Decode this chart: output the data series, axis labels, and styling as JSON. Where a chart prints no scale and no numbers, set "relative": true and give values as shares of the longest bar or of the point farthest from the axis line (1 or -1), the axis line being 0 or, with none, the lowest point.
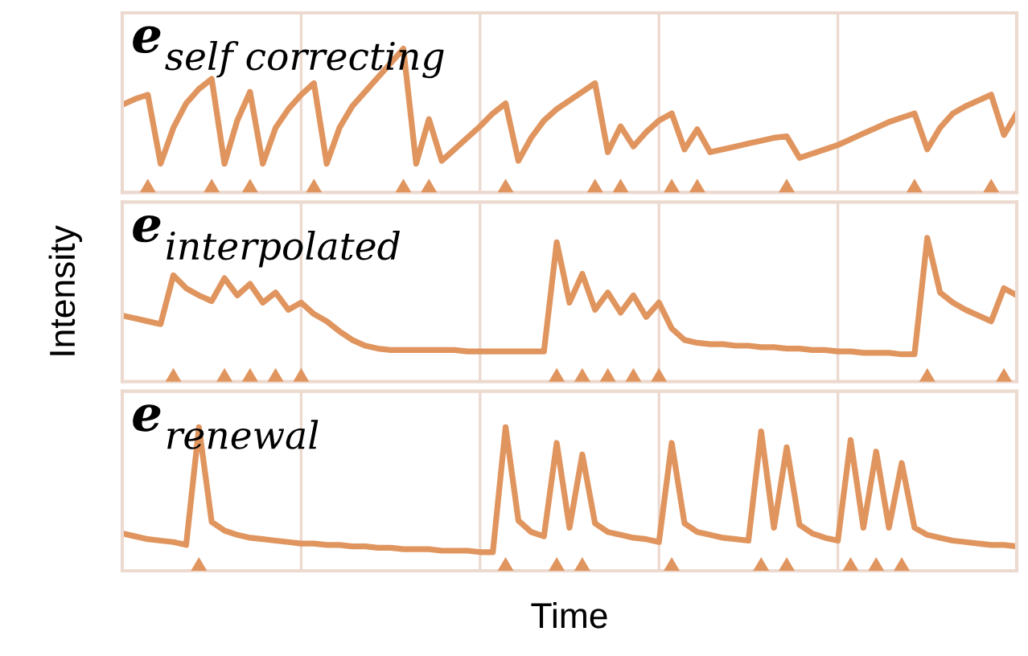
{
  "chart_data": [
    {
      "type": "line",
      "title": "e$_{self correcting}$",
      "relative": true,
      "grid": "x",
      "tick_labels": false,
      "categories": [
        null,
        null,
        null,
        null,
        null,
        null,
        null,
        null,
        null,
        null,
        null,
        null,
        null,
        null,
        null,
        null,
        null,
        null,
        null,
        null,
        null,
        null,
        null,
        null,
        null,
        null,
        null,
        null,
        null,
        null,
        null,
        null,
        null,
        null,
        null,
        null,
        null,
        null,
        null,
        null,
        null,
        null,
        null,
        null,
        null,
        null,
        null,
        null,
        null,
        null,
        null,
        null,
        null,
        null,
        null,
        null,
        null,
        null,
        null,
        null,
        null,
        null,
        null,
        null,
        null,
        null,
        null,
        null,
        null,
        null,
        null
      ],
      "series": [
        {
          "type": "line",
          "color": "#e0955f",
          "values": [
            0.61,
            0.65,
            0.68,
            0.2,
            0.45,
            0.62,
            0.72,
            0.79,
            0.2,
            0.5,
            0.7,
            0.2,
            0.45,
            0.58,
            0.68,
            0.76,
            0.2,
            0.45,
            0.6,
            0.7,
            0.8,
            0.9,
            1.0,
            0.2,
            0.51,
            0.22,
            0.3,
            0.38,
            0.46,
            0.55,
            0.62,
            0.22,
            0.38,
            0.5,
            0.58,
            0.64,
            0.7,
            0.76,
            0.28,
            0.46,
            0.32,
            0.42,
            0.5,
            0.55,
            0.3,
            0.44,
            0.28,
            0.3,
            0.32,
            0.34,
            0.36,
            0.38,
            0.39,
            0.24,
            0.27,
            0.3,
            0.33,
            0.37,
            0.41,
            0.45,
            0.49,
            0.52,
            0.55,
            0.3,
            0.45,
            0.55,
            0.6,
            0.64,
            0.68,
            0.4,
            0.55
          ]
        }
      ]
    },
    {
      "type": "line",
      "title": "e$_{interpolated}$",
      "ylabel": "Intensity",
      "relative": true,
      "grid": "x",
      "tick_labels": false,
      "categories": [
        null,
        null,
        null,
        null,
        null,
        null,
        null,
        null,
        null,
        null,
        null,
        null,
        null,
        null,
        null,
        null,
        null,
        null,
        null,
        null,
        null,
        null,
        null,
        null,
        null,
        null,
        null,
        null,
        null,
        null,
        null,
        null,
        null,
        null,
        null,
        null,
        null,
        null,
        null,
        null,
        null,
        null,
        null,
        null,
        null,
        null,
        null,
        null,
        null,
        null,
        null,
        null,
        null,
        null,
        null,
        null,
        null,
        null,
        null,
        null,
        null,
        null,
        null,
        null,
        null,
        null,
        null,
        null,
        null,
        null,
        null
      ],
      "series": [
        {
          "type": "line",
          "color": "#e0955f",
          "values": [
            0.46,
            0.44,
            0.42,
            0.4,
            0.74,
            0.65,
            0.6,
            0.56,
            0.72,
            0.6,
            0.68,
            0.55,
            0.62,
            0.5,
            0.55,
            0.47,
            0.42,
            0.35,
            0.29,
            0.25,
            0.23,
            0.22,
            0.22,
            0.22,
            0.22,
            0.22,
            0.22,
            0.21,
            0.21,
            0.21,
            0.21,
            0.21,
            0.21,
            0.21,
            0.97,
            0.55,
            0.75,
            0.5,
            0.62,
            0.48,
            0.6,
            0.45,
            0.55,
            0.37,
            0.29,
            0.27,
            0.26,
            0.26,
            0.25,
            0.25,
            0.24,
            0.24,
            0.23,
            0.23,
            0.22,
            0.22,
            0.21,
            0.21,
            0.2,
            0.2,
            0.2,
            0.19,
            0.19,
            1.0,
            0.62,
            0.55,
            0.5,
            0.46,
            0.42,
            0.65,
            0.6
          ]
        }
      ]
    },
    {
      "type": "line",
      "title": "e$_{renewal}$",
      "xlabel": "Time",
      "relative": true,
      "grid": "x",
      "tick_labels": false,
      "categories": [
        null,
        null,
        null,
        null,
        null,
        null,
        null,
        null,
        null,
        null,
        null,
        null,
        null,
        null,
        null,
        null,
        null,
        null,
        null,
        null,
        null,
        null,
        null,
        null,
        null,
        null,
        null,
        null,
        null,
        null,
        null,
        null,
        null,
        null,
        null,
        null,
        null,
        null,
        null,
        null,
        null,
        null,
        null,
        null,
        null,
        null,
        null,
        null,
        null,
        null,
        null,
        null,
        null,
        null,
        null,
        null,
        null,
        null,
        null,
        null,
        null,
        null,
        null,
        null,
        null,
        null,
        null,
        null,
        null,
        null,
        null
      ],
      "series": [
        {
          "type": "line",
          "color": "#e0955f",
          "values": [
            0.26,
            0.24,
            0.22,
            0.21,
            0.2,
            0.18,
            1.0,
            0.34,
            0.28,
            0.25,
            0.23,
            0.22,
            0.21,
            0.2,
            0.19,
            0.19,
            0.18,
            0.18,
            0.17,
            0.17,
            0.16,
            0.16,
            0.15,
            0.15,
            0.15,
            0.14,
            0.14,
            0.14,
            0.13,
            0.13,
            1.0,
            0.35,
            0.27,
            0.24,
            0.89,
            0.3,
            0.81,
            0.33,
            0.27,
            0.25,
            0.23,
            0.22,
            0.2,
            0.89,
            0.33,
            0.27,
            0.25,
            0.23,
            0.22,
            0.21,
            0.97,
            0.3,
            0.86,
            0.32,
            0.26,
            0.23,
            0.21,
            0.91,
            0.3,
            0.83,
            0.3,
            0.75,
            0.3,
            0.25,
            0.23,
            0.21,
            0.2,
            0.19,
            0.18,
            0.18,
            0.17
          ]
        }
      ]
    }
  ]
}
